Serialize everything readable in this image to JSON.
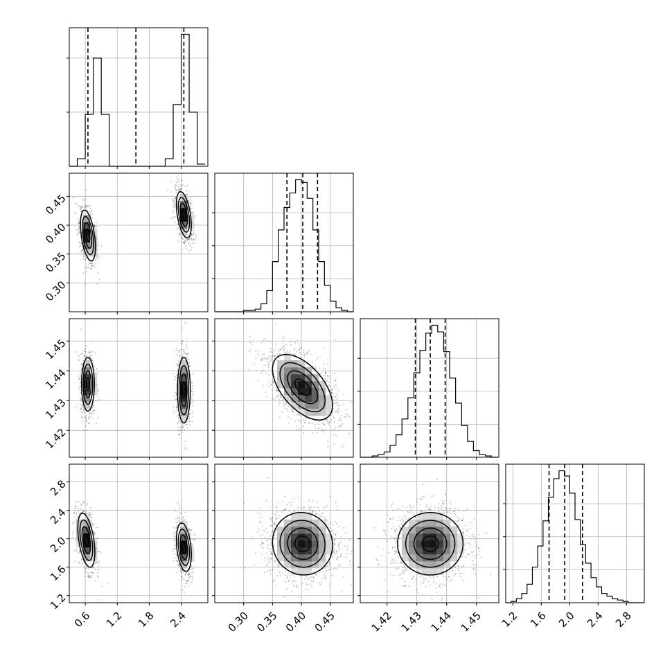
{
  "chart_data": {
    "type": "corner",
    "parameters": [
      {
        "range": [
          0.3,
          2.9
        ],
        "ticks": [
          "0.6",
          "1.2",
          "1.8",
          "2.4"
        ],
        "tick_values": [
          0.6,
          1.2,
          1.8,
          2.4
        ],
        "quantiles": [
          0.65,
          1.55,
          2.45
        ],
        "hist_bins": [
          0.3,
          0.45,
          0.6,
          0.75,
          0.9,
          1.05,
          1.2,
          1.35,
          1.5,
          1.65,
          1.8,
          1.95,
          2.1,
          2.25,
          2.4,
          2.55,
          2.7,
          2.85
        ],
        "hist_counts": [
          0,
          0.07,
          0.48,
          1.0,
          0.48,
          0,
          0,
          0,
          0,
          0,
          0,
          0,
          0.07,
          0.57,
          1.22,
          0.5,
          0.02
        ]
      },
      {
        "range": [
          0.25,
          0.49
        ],
        "ticks": [
          "0.30",
          "0.35",
          "0.40",
          "0.45"
        ],
        "tick_values": [
          0.3,
          0.35,
          0.4,
          0.45
        ],
        "quantiles": [
          0.375,
          0.4025,
          0.428
        ],
        "hist_bins": [
          0.25,
          0.26,
          0.27,
          0.28,
          0.29,
          0.3,
          0.31,
          0.32,
          0.33,
          0.34,
          0.35,
          0.36,
          0.37,
          0.38,
          0.39,
          0.4,
          0.41,
          0.42,
          0.43,
          0.44,
          0.45,
          0.46,
          0.47,
          0.48,
          0.49
        ],
        "hist_counts": [
          0,
          0,
          0,
          0,
          0,
          0.01,
          0.01,
          0.02,
          0.06,
          0.16,
          0.38,
          0.62,
          0.79,
          0.9,
          1.0,
          0.98,
          0.86,
          0.62,
          0.38,
          0.2,
          0.08,
          0.03,
          0.01,
          0
        ]
      },
      {
        "range": [
          1.411,
          1.4575
        ],
        "ticks": [
          "1.42",
          "1.43",
          "1.44",
          "1.45"
        ],
        "tick_values": [
          1.42,
          1.43,
          1.44,
          1.45
        ],
        "quantiles": [
          1.4295,
          1.4345,
          1.4395
        ],
        "hist_bins": [
          1.411,
          1.413,
          1.415,
          1.417,
          1.419,
          1.421,
          1.423,
          1.425,
          1.427,
          1.429,
          1.431,
          1.433,
          1.435,
          1.437,
          1.439,
          1.441,
          1.443,
          1.445,
          1.447,
          1.449,
          1.451,
          1.453,
          1.455,
          1.457
        ],
        "hist_counts": [
          0,
          0,
          0.01,
          0.02,
          0.04,
          0.09,
          0.17,
          0.29,
          0.45,
          0.64,
          0.81,
          0.94,
          1.0,
          0.95,
          0.8,
          0.6,
          0.41,
          0.24,
          0.12,
          0.05,
          0.02,
          0.01,
          0
        ]
      },
      {
        "range": [
          1.1,
          3.05
        ],
        "ticks": [
          "1.2",
          "1.6",
          "2.0",
          "2.4",
          "2.8"
        ],
        "tick_values": [
          1.2,
          1.6,
          2.0,
          2.4,
          2.8
        ],
        "quantiles": [
          1.71,
          1.93,
          2.18
        ],
        "hist_bins": [
          1.1,
          1.175,
          1.25,
          1.325,
          1.4,
          1.475,
          1.55,
          1.625,
          1.7,
          1.775,
          1.85,
          1.925,
          2.0,
          2.075,
          2.15,
          2.225,
          2.3,
          2.375,
          2.45,
          2.525,
          2.6,
          2.675,
          2.75,
          2.825,
          2.9,
          2.975,
          3.05
        ],
        "hist_counts": [
          0,
          0.01,
          0.03,
          0.07,
          0.14,
          0.27,
          0.43,
          0.62,
          0.8,
          0.94,
          1.0,
          0.96,
          0.83,
          0.63,
          0.44,
          0.3,
          0.19,
          0.12,
          0.07,
          0.05,
          0.03,
          0.02,
          0.01,
          0.0,
          0,
          0
        ]
      }
    ],
    "pairs": [
      {
        "x": 0,
        "y": 1,
        "modes": [
          {
            "mean": [
              0.65,
              0.382
            ],
            "std": [
              0.07,
              0.022
            ],
            "corr": -0.45,
            "weight": 0.5
          },
          {
            "mean": [
              2.45,
              0.418
            ],
            "std": [
              0.07,
              0.02
            ],
            "corr": -0.45,
            "weight": 0.5
          }
        ]
      },
      {
        "x": 0,
        "y": 2,
        "modes": [
          {
            "mean": [
              0.65,
              1.4355
            ],
            "std": [
              0.06,
              0.0045
            ],
            "corr": 0.0,
            "weight": 0.5
          },
          {
            "mean": [
              2.45,
              1.4335
            ],
            "std": [
              0.06,
              0.0055
            ],
            "corr": 0.0,
            "weight": 0.5
          }
        ]
      },
      {
        "x": 0,
        "y": 3,
        "modes": [
          {
            "mean": [
              0.62,
              1.98
            ],
            "std": [
              0.08,
              0.19
            ],
            "corr": -0.45,
            "weight": 0.5
          },
          {
            "mean": [
              2.45,
              1.88
            ],
            "std": [
              0.07,
              0.17
            ],
            "corr": -0.3,
            "weight": 0.5
          }
        ]
      },
      {
        "x": 1,
        "y": 2,
        "modes": [
          {
            "mean": [
              0.402,
              1.4345
            ],
            "std": [
              0.026,
              0.0055
            ],
            "corr": -0.55,
            "weight": 1.0
          }
        ]
      },
      {
        "x": 1,
        "y": 3,
        "modes": [
          {
            "mean": [
              0.402,
              1.93
            ],
            "std": [
              0.026,
              0.22
            ],
            "corr": -0.05,
            "weight": 1.0
          }
        ]
      },
      {
        "x": 2,
        "y": 3,
        "modes": [
          {
            "mean": [
              1.4345,
              1.93
            ],
            "std": [
              0.0055,
              0.22
            ],
            "corr": 0.0,
            "weight": 1.0
          }
        ]
      }
    ],
    "grid": true
  }
}
